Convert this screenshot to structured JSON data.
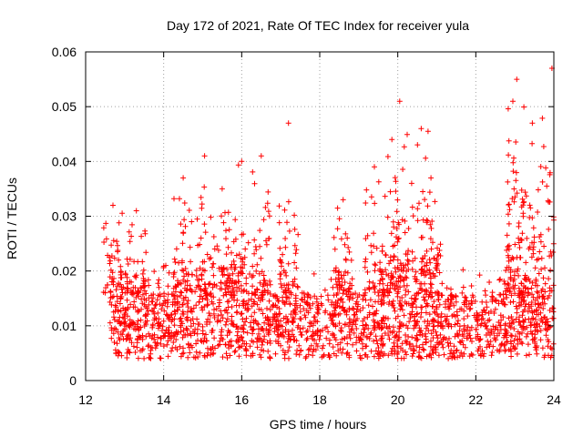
{
  "chart_data": {
    "type": "scatter",
    "title": "Day 172 of 2021, Rate Of TEC Index for receiver yula",
    "xlabel": "GPS time / hours",
    "ylabel": "ROTI / TECUs",
    "xlim": [
      12,
      24
    ],
    "ylim": [
      0,
      0.06
    ],
    "xticks": [
      12,
      14,
      16,
      18,
      20,
      22,
      24
    ],
    "xtick_labels": [
      "12",
      "14",
      "16",
      "18",
      "20",
      "22",
      "24"
    ],
    "yticks": [
      0,
      0.01,
      0.02,
      0.03,
      0.04,
      0.05,
      0.06
    ],
    "ytick_labels": [
      "0",
      "0.01",
      "0.02",
      "0.03",
      "0.04",
      "0.05",
      "0.06"
    ],
    "grid": true,
    "marker": "+",
    "color": "#ff0000",
    "series": [
      {
        "name": "ROTI",
        "x_range": [
          12.62,
          24.0
        ],
        "baseline_band": [
          0.004,
          0.016
        ],
        "peaks": [
          {
            "x": 12.7,
            "y": 0.032
          },
          {
            "x": 13.3,
            "y": 0.031
          },
          {
            "x": 14.5,
            "y": 0.037
          },
          {
            "x": 15.05,
            "y": 0.041
          },
          {
            "x": 15.5,
            "y": 0.035
          },
          {
            "x": 16.0,
            "y": 0.04
          },
          {
            "x": 16.5,
            "y": 0.041
          },
          {
            "x": 17.2,
            "y": 0.047
          },
          {
            "x": 18.6,
            "y": 0.033
          },
          {
            "x": 19.4,
            "y": 0.039
          },
          {
            "x": 19.85,
            "y": 0.044
          },
          {
            "x": 20.05,
            "y": 0.051
          },
          {
            "x": 20.6,
            "y": 0.046
          },
          {
            "x": 20.85,
            "y": 0.037
          },
          {
            "x": 22.95,
            "y": 0.051
          },
          {
            "x": 23.05,
            "y": 0.055
          },
          {
            "x": 23.45,
            "y": 0.047
          },
          {
            "x": 23.95,
            "y": 0.057
          }
        ]
      }
    ]
  }
}
